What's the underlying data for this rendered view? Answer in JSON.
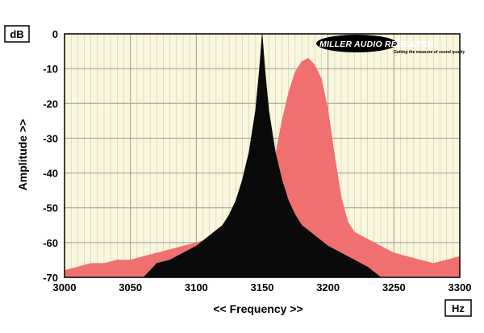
{
  "chart_data": {
    "type": "area",
    "title": "",
    "xlabel": "<< Frequency >>",
    "ylabel": "Amplitude >>",
    "x_unit": "Hz",
    "y_unit": "dB",
    "xlim": [
      3000,
      3300
    ],
    "ylim": [
      -70,
      0
    ],
    "x_ticks": [
      3000,
      3050,
      3100,
      3150,
      3200,
      3250,
      3300
    ],
    "y_ticks": [
      0,
      -10,
      -20,
      -30,
      -40,
      -50,
      -60,
      -70
    ],
    "grid": true,
    "background": "#fbf7dc",
    "series": [
      {
        "color": "#f07070",
        "points": [
          [
            3000,
            -68
          ],
          [
            3010,
            -67
          ],
          [
            3020,
            -66
          ],
          [
            3030,
            -66
          ],
          [
            3040,
            -65
          ],
          [
            3050,
            -65
          ],
          [
            3060,
            -64
          ],
          [
            3070,
            -63
          ],
          [
            3080,
            -62
          ],
          [
            3090,
            -61
          ],
          [
            3100,
            -60
          ],
          [
            3110,
            -59
          ],
          [
            3120,
            -58
          ],
          [
            3130,
            -57
          ],
          [
            3140,
            -56
          ],
          [
            3150,
            -52
          ],
          [
            3155,
            -45
          ],
          [
            3160,
            -35
          ],
          [
            3165,
            -25
          ],
          [
            3170,
            -17
          ],
          [
            3175,
            -11
          ],
          [
            3180,
            -8
          ],
          [
            3185,
            -7
          ],
          [
            3190,
            -9
          ],
          [
            3195,
            -13
          ],
          [
            3200,
            -22
          ],
          [
            3205,
            -35
          ],
          [
            3210,
            -47
          ],
          [
            3215,
            -54
          ],
          [
            3220,
            -57
          ],
          [
            3230,
            -59
          ],
          [
            3240,
            -61
          ],
          [
            3250,
            -63
          ],
          [
            3260,
            -64
          ],
          [
            3270,
            -65
          ],
          [
            3280,
            -66
          ],
          [
            3290,
            -65
          ],
          [
            3300,
            -64
          ]
        ]
      },
      {
        "color": "#0a0a0a",
        "points": [
          [
            3060,
            -70
          ],
          [
            3065,
            -68
          ],
          [
            3070,
            -66
          ],
          [
            3080,
            -65
          ],
          [
            3090,
            -63
          ],
          [
            3100,
            -61
          ],
          [
            3110,
            -58
          ],
          [
            3120,
            -55
          ],
          [
            3125,
            -52
          ],
          [
            3130,
            -48
          ],
          [
            3135,
            -42
          ],
          [
            3140,
            -34
          ],
          [
            3145,
            -22
          ],
          [
            3148,
            -10
          ],
          [
            3150,
            0
          ],
          [
            3152,
            -10
          ],
          [
            3155,
            -22
          ],
          [
            3160,
            -34
          ],
          [
            3165,
            -42
          ],
          [
            3170,
            -48
          ],
          [
            3175,
            -52
          ],
          [
            3180,
            -55
          ],
          [
            3190,
            -58
          ],
          [
            3200,
            -61
          ],
          [
            3210,
            -63
          ],
          [
            3220,
            -65
          ],
          [
            3230,
            -67
          ],
          [
            3240,
            -70
          ]
        ]
      }
    ]
  },
  "logo": {
    "name": "MILLER AUDIO RESEARCH",
    "tagline": "Getting the measure of sound quality"
  }
}
